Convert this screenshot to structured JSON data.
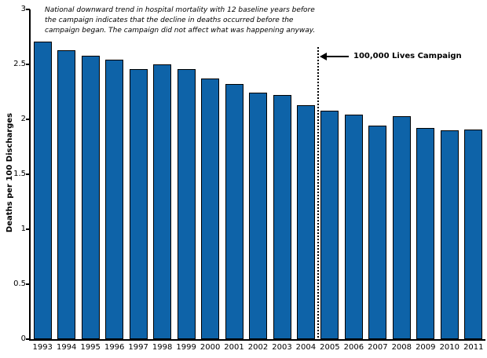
{
  "chart_data": {
    "type": "bar",
    "title": "",
    "categories": [
      "1993",
      "1994",
      "1995",
      "1996",
      "1997",
      "1998",
      "1999",
      "2000",
      "2001",
      "2002",
      "2003",
      "2004",
      "2005",
      "2006",
      "2007",
      "2008",
      "2009",
      "2010",
      "2011"
    ],
    "values": [
      2.71,
      2.63,
      2.58,
      2.54,
      2.46,
      2.5,
      2.46,
      2.37,
      2.32,
      2.24,
      2.22,
      2.13,
      2.08,
      2.04,
      1.94,
      2.03,
      1.92,
      1.9,
      1.91
    ],
    "xlabel": "",
    "ylabel": "Deaths per 100 Discharges",
    "ylim": [
      0,
      3
    ],
    "yticks": [
      0,
      0.5,
      1,
      1.5,
      2,
      2.5,
      3
    ],
    "ytick_labels": [
      "0",
      "0.5",
      "1",
      "1.5",
      "2",
      "2.5",
      "3"
    ],
    "grid": false,
    "legend": false,
    "bar_color": "#0E63A8",
    "bar_border_color": "#000000",
    "annotation": {
      "lines": [
        "National downward trend in hospital mortality with 12 baseline years before",
        "the campaign indicates that the decline in deaths occurred before the",
        "campaign began. The campaign did not affect what was happening anyway."
      ]
    },
    "campaign_marker": {
      "label": "100,000 Lives Campaign",
      "line_after_category": "2004",
      "line_style": "dotted"
    }
  }
}
